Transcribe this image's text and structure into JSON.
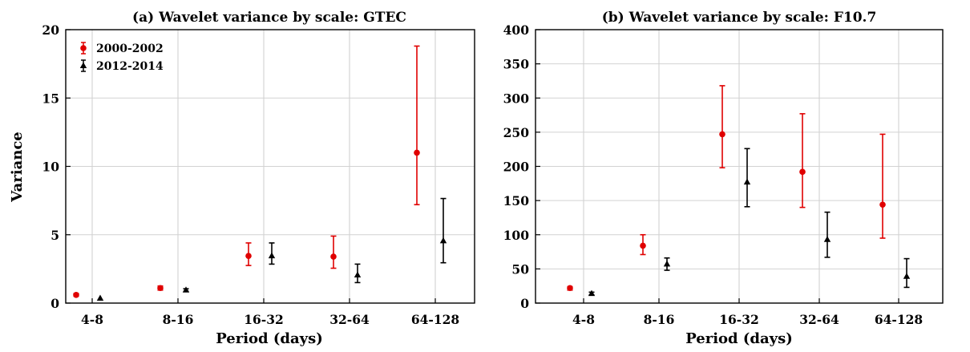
{
  "chart_data": [
    {
      "type": "scatter",
      "title": "(a) Wavelet variance by scale: GTEC",
      "xlabel": "Period (days)",
      "ylabel": "Variance",
      "categories": [
        "4-8",
        "8-16",
        "16-32",
        "32-64",
        "64-128"
      ],
      "ylim": [
        0,
        20
      ],
      "yticks": [
        0,
        5,
        10,
        15,
        20
      ],
      "grid": true,
      "legend_position": "top-left",
      "series": [
        {
          "name": "2000-2002",
          "color": "#e00000",
          "marker": "circle",
          "values": [
            0.6,
            1.1,
            3.45,
            3.4,
            11.0
          ],
          "lower": [
            0.5,
            0.95,
            2.75,
            2.55,
            7.2
          ],
          "upper": [
            0.7,
            1.25,
            4.4,
            4.9,
            18.8
          ]
        },
        {
          "name": "2012-2014",
          "color": "#000000",
          "marker": "triangle",
          "values": [
            0.35,
            0.95,
            3.45,
            2.05,
            4.55
          ],
          "lower": [
            0.3,
            0.85,
            2.85,
            1.5,
            2.95
          ],
          "upper": [
            0.4,
            1.05,
            4.4,
            2.85,
            7.65
          ]
        }
      ]
    },
    {
      "type": "scatter",
      "title": "(b) Wavelet variance by scale: F10.7",
      "xlabel": "Period (days)",
      "ylabel": "",
      "categories": [
        "4-8",
        "8-16",
        "16-32",
        "32-64",
        "64-128"
      ],
      "ylim": [
        0,
        400
      ],
      "yticks": [
        0,
        50,
        100,
        150,
        200,
        250,
        300,
        350,
        400
      ],
      "grid": true,
      "series": [
        {
          "name": "2000-2002",
          "color": "#e00000",
          "marker": "circle",
          "values": [
            22,
            84,
            247,
            192,
            144
          ],
          "lower": [
            19,
            71,
            198,
            140,
            95
          ],
          "upper": [
            24,
            100,
            318,
            277,
            247
          ]
        },
        {
          "name": "2012-2014",
          "color": "#000000",
          "marker": "triangle",
          "values": [
            14,
            57,
            177,
            93,
            39
          ],
          "lower": [
            12,
            48,
            141,
            67,
            23
          ],
          "upper": [
            16,
            66,
            226,
            133,
            65
          ]
        }
      ]
    }
  ]
}
